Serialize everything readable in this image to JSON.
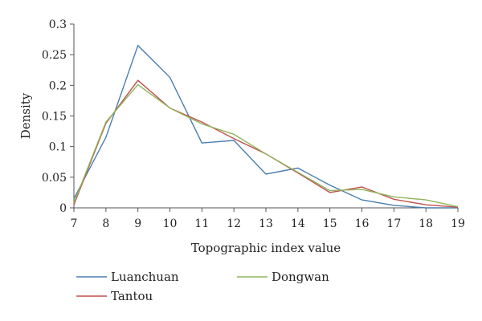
{
  "chart_data": {
    "type": "line",
    "xlabel": "Topographic index value",
    "ylabel": "Density",
    "x": [
      7,
      8,
      9,
      10,
      11,
      12,
      13,
      14,
      15,
      16,
      17,
      18,
      19
    ],
    "xlim": [
      7,
      19
    ],
    "ylim": [
      0,
      0.3
    ],
    "yticks": [
      "0",
      "0.05",
      "0.1",
      "0.15",
      "0.2",
      "0.25",
      "0.3"
    ],
    "grid": false,
    "legend_position": "bottom",
    "series": [
      {
        "name": "Luanchuan",
        "color": "#4a7fb0",
        "values": [
          0.015,
          0.115,
          0.265,
          0.213,
          0.106,
          0.11,
          0.055,
          0.065,
          0.037,
          0.013,
          0.004,
          0.0,
          0.0
        ]
      },
      {
        "name": "Tantou",
        "color": "#c0504d",
        "values": [
          0.005,
          0.138,
          0.208,
          0.163,
          0.14,
          0.113,
          0.088,
          0.057,
          0.025,
          0.034,
          0.014,
          0.005,
          0.001
        ]
      },
      {
        "name": "Dongwan",
        "color": "#8fb55a",
        "values": [
          0.008,
          0.14,
          0.201,
          0.163,
          0.137,
          0.12,
          0.088,
          0.058,
          0.028,
          0.03,
          0.018,
          0.013,
          0.002
        ]
      }
    ]
  }
}
